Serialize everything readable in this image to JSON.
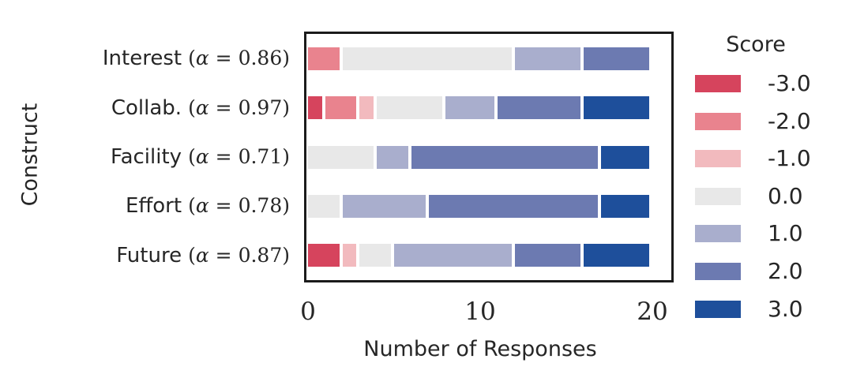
{
  "chart_data": {
    "type": "bar",
    "orientation": "horizontal",
    "stacked": true,
    "xlabel": "Number of Responses",
    "ylabel": "Construct",
    "xlim": [
      0,
      20
    ],
    "x_ticks": [
      "0",
      "10",
      "20"
    ],
    "x_tick_values": [
      0,
      10,
      20
    ],
    "grid": false,
    "legend_title": "Score",
    "legend_position": "right",
    "categories": [
      {
        "name": "Interest",
        "alpha_label": "(α = 0.86)"
      },
      {
        "name": "Collab.",
        "alpha_label": "(α = 0.97)"
      },
      {
        "name": "Facility",
        "alpha_label": "(α = 0.71)"
      },
      {
        "name": "Effort",
        "alpha_label": "(α = 0.78)"
      },
      {
        "name": "Future",
        "alpha_label": "(α = 0.87)"
      }
    ],
    "series": [
      {
        "name": "-3.0",
        "color": "#d6445d",
        "values": [
          0,
          1,
          0,
          0,
          2
        ]
      },
      {
        "name": "-2.0",
        "color": "#e9838e",
        "values": [
          2,
          2,
          0,
          0,
          0
        ]
      },
      {
        "name": "-1.0",
        "color": "#f2babe",
        "values": [
          0,
          1,
          0,
          0,
          1
        ]
      },
      {
        "name": "0.0",
        "color": "#e8e8e8",
        "values": [
          10,
          4,
          4,
          2,
          2
        ]
      },
      {
        "name": "1.0",
        "color": "#a9aecd",
        "values": [
          4,
          3,
          2,
          5,
          7
        ]
      },
      {
        "name": "2.0",
        "color": "#6c7ab1",
        "values": [
          4,
          5,
          11,
          10,
          4
        ]
      },
      {
        "name": "3.0",
        "color": "#1e4f9b",
        "values": [
          0,
          4,
          3,
          3,
          4
        ]
      }
    ],
    "totals_per_category": [
      20,
      20,
      20,
      20,
      20
    ]
  },
  "style": {
    "spine_color": "#1b1b1b",
    "text_color": "#262626",
    "background": "#ffffff"
  }
}
